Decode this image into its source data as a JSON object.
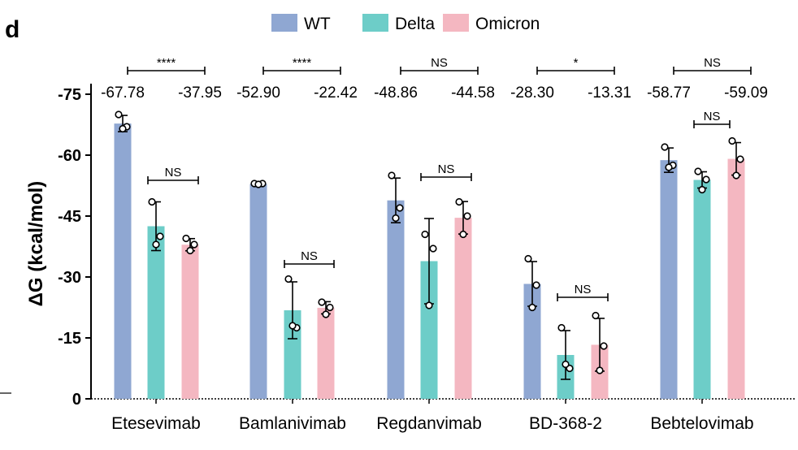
{
  "panel_label": "d",
  "chart_data": {
    "type": "bar",
    "title": "",
    "xlabel": "",
    "ylabel": "ΔG (kcal/mol)",
    "ylim": [
      0,
      -80
    ],
    "yticks": [
      0,
      -15,
      -30,
      -45,
      -60,
      -75
    ],
    "ytick_labels": [
      "0",
      "-15",
      "-30",
      "-45",
      "-60",
      "-75"
    ],
    "categories": [
      "Etesevimab",
      "Bamlanivimab",
      "Regdanvimab",
      "BD-368-2",
      "Bebtelovimab"
    ],
    "legend_position": "top-center",
    "series": [
      {
        "name": "WT",
        "color": "#8fa7d2",
        "values": [
          -67.78,
          -52.9,
          -48.86,
          -28.3,
          -58.77
        ],
        "error": [
          2.0,
          0.3,
          5.5,
          5.5,
          3.0
        ],
        "points": [
          [
            -70.0,
            -67.0,
            -66.5
          ],
          [
            -53.0,
            -53.0,
            -52.8
          ],
          [
            -55.0,
            -47.0,
            -44.5
          ],
          [
            -34.5,
            -28.0,
            -22.5
          ],
          [
            -62.0,
            -57.5,
            -57.0
          ]
        ]
      },
      {
        "name": "Delta",
        "color": "#6dcdc8",
        "values": [
          -42.5,
          -21.8,
          -33.9,
          -10.8,
          -53.9
        ],
        "error": [
          6.0,
          7.0,
          10.5,
          6.0,
          2.0
        ],
        "points": [
          [
            -48.5,
            -40.0,
            -38.0
          ],
          [
            -29.5,
            -17.5,
            -18.0
          ],
          [
            -40.5,
            -37.0,
            -23.0
          ],
          [
            -17.5,
            -7.5,
            -8.5
          ],
          [
            -56.0,
            -54.0,
            -51.5
          ]
        ]
      },
      {
        "name": "Omicron",
        "color": "#f4b7c1",
        "values": [
          -37.95,
          -22.42,
          -44.58,
          -13.31,
          -59.09
        ],
        "error": [
          1.5,
          1.5,
          4.0,
          6.5,
          4.0
        ],
        "points": [
          [
            -39.5,
            -38.0,
            -36.5
          ],
          [
            -23.8,
            -22.5,
            -20.8
          ],
          [
            -48.5,
            -45.0,
            -40.5
          ],
          [
            -20.5,
            -13.0,
            -7.0
          ],
          [
            -63.5,
            -59.0,
            -55.0
          ]
        ]
      }
    ],
    "group_value_labels": [
      [
        "-67.78",
        "-37.95"
      ],
      [
        "-52.90",
        "-22.42"
      ],
      [
        "-48.86",
        "-44.58"
      ],
      [
        "-28.30",
        "-13.31"
      ],
      [
        "-58.77",
        "-59.09"
      ]
    ],
    "comparisons_wt_vs_omicron": [
      "****",
      "****",
      "NS",
      "*",
      "NS"
    ],
    "comparisons_delta_vs_omicron": [
      "NS",
      "NS",
      "NS",
      "NS",
      ""
    ],
    "comparisons_wt_vs_delta": [
      "",
      "",
      "",
      "",
      "NS"
    ]
  }
}
